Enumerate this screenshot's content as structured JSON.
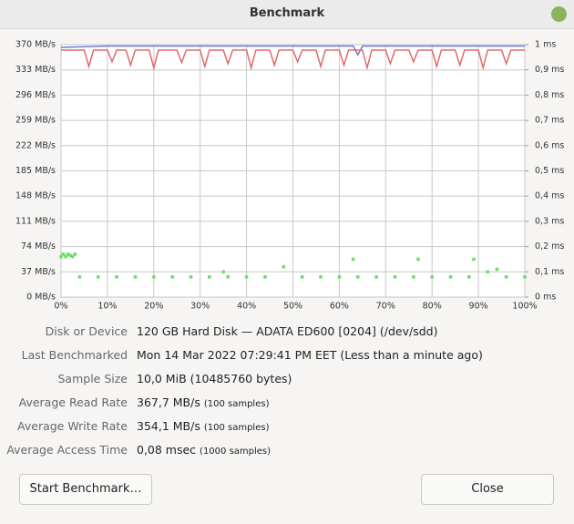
{
  "window": {
    "title": "Benchmark"
  },
  "chart_data": {
    "type": "line",
    "xlim": [
      0,
      100
    ],
    "xticks": [
      {
        "value": 0,
        "label": "0%"
      },
      {
        "value": 10,
        "label": "10%"
      },
      {
        "value": 20,
        "label": "20%"
      },
      {
        "value": 30,
        "label": "30%"
      },
      {
        "value": 40,
        "label": "40%"
      },
      {
        "value": 50,
        "label": "50%"
      },
      {
        "value": 60,
        "label": "60%"
      },
      {
        "value": 70,
        "label": "70%"
      },
      {
        "value": 80,
        "label": "80%"
      },
      {
        "value": 90,
        "label": "90%"
      },
      {
        "value": 100,
        "label": "100%"
      }
    ],
    "ylim": [
      0,
      370
    ],
    "yticks": [
      {
        "value": 0,
        "label": "0 MB/s"
      },
      {
        "value": 37,
        "label": "37 MB/s"
      },
      {
        "value": 74,
        "label": "74 MB/s"
      },
      {
        "value": 111,
        "label": "111 MB/s"
      },
      {
        "value": 148,
        "label": "148 MB/s"
      },
      {
        "value": 185,
        "label": "185 MB/s"
      },
      {
        "value": 222,
        "label": "222 MB/s"
      },
      {
        "value": 259,
        "label": "259 MB/s"
      },
      {
        "value": 296,
        "label": "296 MB/s"
      },
      {
        "value": 333,
        "label": "333 MB/s"
      },
      {
        "value": 370,
        "label": "370 MB/s"
      }
    ],
    "y2lim": [
      0,
      1
    ],
    "y2ticks": [
      {
        "value": 0,
        "label": "0 ms"
      },
      {
        "value": 0.1,
        "label": "0,1 ms"
      },
      {
        "value": 0.2,
        "label": "0,2 ms"
      },
      {
        "value": 0.3,
        "label": "0,3 ms"
      },
      {
        "value": 0.4,
        "label": "0,4 ms"
      },
      {
        "value": 0.5,
        "label": "0,5 ms"
      },
      {
        "value": 0.6,
        "label": "0,6 ms"
      },
      {
        "value": 0.7,
        "label": "0,7 ms"
      },
      {
        "value": 0.8,
        "label": "0,8 ms"
      },
      {
        "value": 0.9,
        "label": "0,9 ms"
      },
      {
        "value": 1,
        "label": "1 ms"
      }
    ],
    "grid": true,
    "series": [
      {
        "type": "line",
        "color": "#6f7ad2",
        "x": [
          0,
          10,
          20,
          30,
          40,
          50,
          60,
          63,
          64,
          65,
          70,
          80,
          90,
          100
        ],
        "values": [
          366,
          368,
          368,
          368,
          368,
          368,
          368,
          368,
          355,
          368,
          368,
          368,
          368,
          368
        ]
      },
      {
        "type": "line",
        "color": "#e06a6a",
        "x": [
          0,
          5,
          6,
          7,
          10,
          11,
          12,
          14,
          15,
          16,
          19,
          20,
          21,
          25,
          26,
          27,
          30,
          31,
          32,
          35,
          36,
          37,
          40,
          41,
          42,
          45,
          46,
          47,
          50,
          51,
          52,
          55,
          56,
          57,
          60,
          61,
          62,
          65,
          66,
          67,
          70,
          71,
          72,
          75,
          76,
          77,
          80,
          81,
          82,
          85,
          86,
          87,
          90,
          91,
          92,
          95,
          96,
          97,
          100
        ],
        "values": [
          362,
          362,
          338,
          362,
          362,
          345,
          362,
          362,
          340,
          362,
          362,
          336,
          362,
          362,
          344,
          362,
          362,
          338,
          362,
          362,
          342,
          362,
          362,
          336,
          362,
          362,
          340,
          362,
          362,
          345,
          362,
          362,
          338,
          362,
          362,
          340,
          362,
          362,
          336,
          362,
          362,
          342,
          362,
          362,
          345,
          362,
          362,
          338,
          362,
          362,
          340,
          362,
          362,
          336,
          362,
          362,
          342,
          362,
          362
        ]
      },
      {
        "type": "scatter",
        "axis": "y2",
        "color": "#6fe06f",
        "x": [
          0,
          0.5,
          1,
          1.5,
          2,
          2.5,
          3,
          4,
          8,
          12,
          16,
          20,
          24,
          28,
          32,
          35,
          36,
          40,
          44,
          48,
          52,
          56,
          60,
          63,
          64,
          68,
          72,
          76,
          77,
          80,
          84,
          88,
          89,
          92,
          94,
          96,
          100
        ],
        "values": [
          0.16,
          0.17,
          0.16,
          0.17,
          0.165,
          0.16,
          0.17,
          0.08,
          0.08,
          0.08,
          0.08,
          0.08,
          0.08,
          0.08,
          0.08,
          0.1,
          0.08,
          0.08,
          0.08,
          0.12,
          0.08,
          0.08,
          0.08,
          0.15,
          0.08,
          0.08,
          0.08,
          0.08,
          0.15,
          0.08,
          0.08,
          0.08,
          0.15,
          0.1,
          0.11,
          0.08,
          0.08
        ]
      }
    ]
  },
  "details": [
    {
      "label": "Disk or Device",
      "value": "120 GB Hard Disk — ADATA ED600 [0204] (/dev/sdd)"
    },
    {
      "label": "Last Benchmarked",
      "value": "Mon 14 Mar 2022 07:29:41 PM EET (Less than a minute ago)"
    },
    {
      "label": "Sample Size",
      "value": "10,0 MiB (10485760 bytes)"
    },
    {
      "label": "Average Read Rate",
      "value": "367,7 MB/s",
      "note": "(100 samples)"
    },
    {
      "label": "Average Write Rate",
      "value": "354,1 MB/s",
      "note": "(100 samples)"
    },
    {
      "label": "Average Access Time",
      "value": "0,08 msec",
      "note": "(1000 samples)"
    }
  ],
  "buttons": [
    "Start Benchmark…",
    "Close"
  ]
}
